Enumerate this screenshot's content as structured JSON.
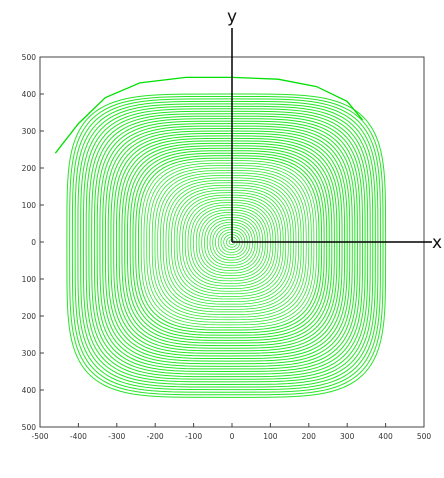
{
  "chart_data": {
    "type": "line",
    "title": "",
    "xlabel": "x",
    "ylabel": "y",
    "xlim": [
      -500,
      500
    ],
    "ylim": [
      -500,
      500
    ],
    "grid": false,
    "x_ticks": [
      "-500",
      "-400",
      "-300",
      "-200",
      "-100",
      "0",
      "100",
      "200",
      "300",
      "400",
      "500"
    ],
    "y_ticks": [
      "500",
      "400",
      "300",
      "200",
      "100",
      "0",
      "100",
      "200",
      "300",
      "400",
      "500"
    ],
    "series": [
      {
        "style": "concentric contour loops around origin",
        "color": "#00e000",
        "center": [
          0,
          0
        ],
        "outer_extent": {
          "x_min": -430,
          "x_max": 400,
          "y_min": -420,
          "y_max": 400
        },
        "loop_count_approx": 60
      },
      {
        "style": "outer trailing arc",
        "color": "#00e000",
        "points": [
          [
            -460,
            240
          ],
          [
            -400,
            320
          ],
          [
            -330,
            390
          ],
          [
            -240,
            430
          ],
          [
            -120,
            445
          ],
          [
            0,
            445
          ],
          [
            120,
            440
          ],
          [
            220,
            420
          ],
          [
            300,
            380
          ],
          [
            340,
            330
          ]
        ]
      }
    ],
    "colors": {
      "trace": "#00e000",
      "axes": "#000000",
      "frame": "#333333"
    }
  }
}
